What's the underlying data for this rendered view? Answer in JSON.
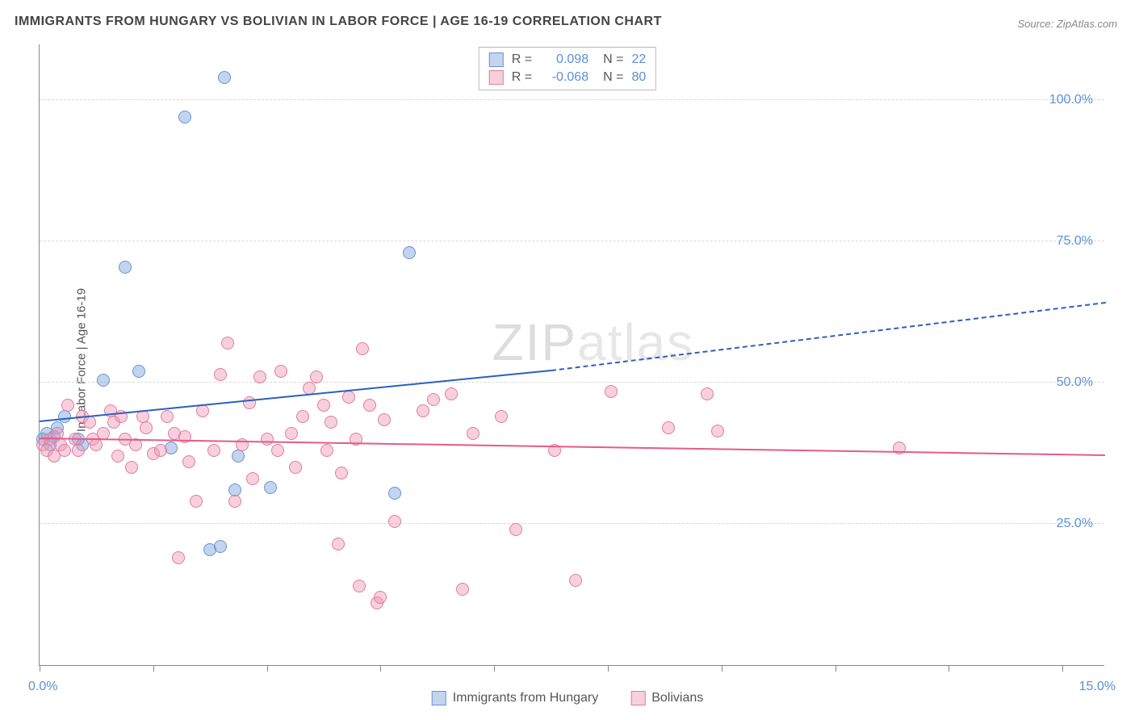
{
  "chart": {
    "type": "scatter",
    "title": "IMMIGRANTS FROM HUNGARY VS BOLIVIAN IN LABOR FORCE | AGE 16-19 CORRELATION CHART",
    "source": "Source: ZipAtlas.com",
    "ylabel": "In Labor Force | Age 16-19",
    "watermark": "ZIPatlas",
    "background_color": "#ffffff",
    "grid_color": "#d8d8d8",
    "axis_color": "#888888",
    "label_color": "#5b8fd6",
    "title_color": "#444444",
    "title_fontsize": 16,
    "label_fontsize": 16,
    "ylabel_fontsize": 15,
    "xlim": [
      0,
      15
    ],
    "ylim": [
      0,
      110
    ],
    "xticks": [
      0,
      1.6,
      3.2,
      4.8,
      6.4,
      8.0,
      9.6,
      11.2,
      12.8,
      14.4
    ],
    "xaxis_labels": [
      {
        "value": "0.0%",
        "pos": 0
      },
      {
        "value": "15.0%",
        "pos": 15
      }
    ],
    "yticks": [
      {
        "value": 25,
        "label": "25.0%"
      },
      {
        "value": 50,
        "label": "50.0%"
      },
      {
        "value": 75,
        "label": "75.0%"
      },
      {
        "value": 100,
        "label": "100.0%"
      }
    ],
    "series": [
      {
        "name": "Immigrants from Hungary",
        "marker_fill": "rgba(120,160,220,0.45)",
        "marker_stroke": "#6a95cf",
        "marker_size": 16,
        "trend_color": "#2b5fc0",
        "correlation_r": "0.098",
        "n": "22",
        "trend": {
          "x1": 0,
          "y1": 43,
          "x2": 7.2,
          "y2": 52,
          "dash_from_x": 7.2,
          "x3": 15,
          "y3": 64
        },
        "points": [
          [
            0.05,
            40
          ],
          [
            0.1,
            41
          ],
          [
            0.15,
            39
          ],
          [
            0.2,
            40.5
          ],
          [
            0.25,
            42
          ],
          [
            0.35,
            44
          ],
          [
            0.55,
            40
          ],
          [
            0.6,
            39
          ],
          [
            0.9,
            50.5
          ],
          [
            1.2,
            70.5
          ],
          [
            1.4,
            52
          ],
          [
            1.85,
            38.5
          ],
          [
            2.05,
            97
          ],
          [
            2.4,
            20.5
          ],
          [
            2.6,
            104
          ],
          [
            2.55,
            21
          ],
          [
            2.75,
            31
          ],
          [
            2.8,
            37
          ],
          [
            3.25,
            31.5
          ],
          [
            5.0,
            30.5
          ],
          [
            5.2,
            73
          ]
        ]
      },
      {
        "name": "Bolivians",
        "marker_fill": "rgba(240,150,180,0.45)",
        "marker_stroke": "#e07ba0",
        "marker_size": 16,
        "trend_color": "#e55a8a",
        "correlation_r": "-0.068",
        "n": "80",
        "trend": {
          "x1": 0,
          "y1": 40,
          "x2": 15,
          "y2": 37
        },
        "points": [
          [
            0.05,
            39
          ],
          [
            0.1,
            38
          ],
          [
            0.15,
            40
          ],
          [
            0.2,
            37
          ],
          [
            0.25,
            41
          ],
          [
            0.3,
            39
          ],
          [
            0.35,
            38
          ],
          [
            0.4,
            46
          ],
          [
            0.5,
            40
          ],
          [
            0.55,
            38
          ],
          [
            0.6,
            44
          ],
          [
            0.7,
            43
          ],
          [
            0.75,
            40
          ],
          [
            0.8,
            39
          ],
          [
            0.9,
            41
          ],
          [
            1.0,
            45
          ],
          [
            1.05,
            43
          ],
          [
            1.1,
            37
          ],
          [
            1.15,
            44
          ],
          [
            1.2,
            40
          ],
          [
            1.3,
            35
          ],
          [
            1.35,
            39
          ],
          [
            1.45,
            44
          ],
          [
            1.5,
            42
          ],
          [
            1.6,
            37.5
          ],
          [
            1.7,
            38
          ],
          [
            1.8,
            44
          ],
          [
            1.9,
            41
          ],
          [
            1.95,
            19
          ],
          [
            2.05,
            40.5
          ],
          [
            2.1,
            36
          ],
          [
            2.2,
            29
          ],
          [
            2.3,
            45
          ],
          [
            2.45,
            38
          ],
          [
            2.55,
            51.5
          ],
          [
            2.65,
            57
          ],
          [
            2.75,
            29
          ],
          [
            2.85,
            39
          ],
          [
            2.95,
            46.5
          ],
          [
            3.0,
            33
          ],
          [
            3.1,
            51
          ],
          [
            3.2,
            40
          ],
          [
            3.35,
            38
          ],
          [
            3.4,
            52
          ],
          [
            3.55,
            41
          ],
          [
            3.6,
            35
          ],
          [
            3.7,
            44
          ],
          [
            3.8,
            49
          ],
          [
            3.9,
            51
          ],
          [
            4.0,
            46
          ],
          [
            4.05,
            38
          ],
          [
            4.1,
            43
          ],
          [
            4.2,
            21.5
          ],
          [
            4.25,
            34
          ],
          [
            4.35,
            47.5
          ],
          [
            4.45,
            40
          ],
          [
            4.5,
            14
          ],
          [
            4.55,
            56
          ],
          [
            4.65,
            46
          ],
          [
            4.75,
            11
          ],
          [
            4.8,
            12
          ],
          [
            4.85,
            43.5
          ],
          [
            5.0,
            25.5
          ],
          [
            5.4,
            45
          ],
          [
            5.55,
            47
          ],
          [
            5.8,
            48
          ],
          [
            5.95,
            13.5
          ],
          [
            6.1,
            41
          ],
          [
            6.5,
            44
          ],
          [
            6.7,
            24
          ],
          [
            7.25,
            38
          ],
          [
            7.55,
            15
          ],
          [
            8.05,
            48.5
          ],
          [
            8.85,
            42
          ],
          [
            9.4,
            48
          ],
          [
            9.55,
            41.5
          ],
          [
            12.1,
            38.5
          ]
        ]
      }
    ],
    "legend_top": {
      "rows": [
        {
          "swatch_fill": "rgba(120,160,220,0.45)",
          "swatch_stroke": "#6a95cf",
          "r_label": "R =",
          "r_value": "0.098",
          "n_label": "N =",
          "n_value": "22"
        },
        {
          "swatch_fill": "rgba(240,150,180,0.45)",
          "swatch_stroke": "#e07ba0",
          "r_label": "R =",
          "r_value": "-0.068",
          "n_label": "N =",
          "n_value": "80"
        }
      ]
    },
    "legend_bottom": [
      {
        "swatch_fill": "rgba(120,160,220,0.45)",
        "swatch_stroke": "#6a95cf",
        "label": "Immigrants from Hungary"
      },
      {
        "swatch_fill": "rgba(240,150,180,0.45)",
        "swatch_stroke": "#e07ba0",
        "label": "Bolivians"
      }
    ]
  }
}
